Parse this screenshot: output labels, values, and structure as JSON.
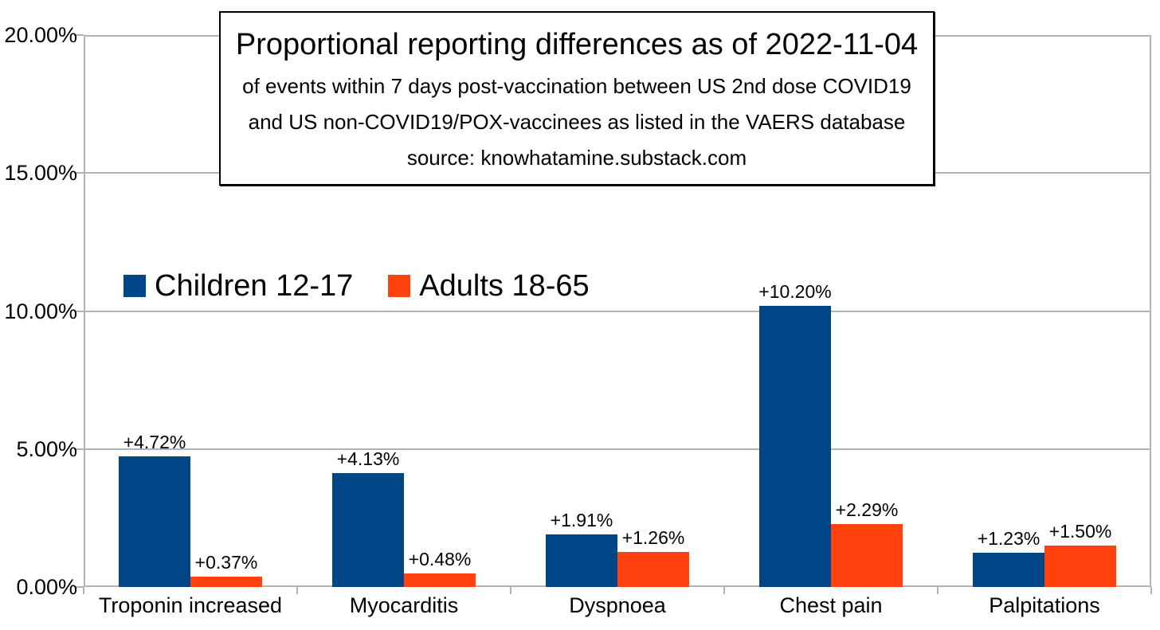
{
  "chart_data": {
    "type": "bar",
    "title": "Proportional reporting differences as of 2022-11-04",
    "subtitle_lines": [
      "of events within 7 days post-vaccination between US 2nd dose COVID19",
      "and US non-COVID19/POX-vaccinees as listed in the VAERS database",
      "source: knowhatamine.substack.com"
    ],
    "categories": [
      "Troponin increased",
      "Myocarditis",
      "Dyspnoea",
      "Chest pain",
      "Palpitations"
    ],
    "series": [
      {
        "name": "Children 12-17",
        "color": "#004586",
        "values": [
          4.72,
          4.13,
          1.91,
          10.2,
          1.23
        ],
        "labels": [
          "+4.72%",
          "+4.13%",
          "+1.91%",
          "+10.20%",
          "+1.23%"
        ]
      },
      {
        "name": "Adults 18-65",
        "color": "#ff420e",
        "values": [
          0.37,
          0.48,
          1.26,
          2.29,
          1.5
        ],
        "labels": [
          "+0.37%",
          "+0.48%",
          "+1.26%",
          "+2.29%",
          "+1.50%"
        ]
      }
    ],
    "ylim": [
      0,
      20
    ],
    "y_ticks": [
      {
        "value": 20,
        "label": "20.00%"
      },
      {
        "value": 15,
        "label": "15.00%"
      },
      {
        "value": 10,
        "label": "10.00%"
      },
      {
        "value": 5,
        "label": "5.00%"
      },
      {
        "value": 0,
        "label": "0.00%"
      }
    ],
    "grid": "horizontal",
    "legend_position": "inside-top-left",
    "colors": {
      "series1": "#004586",
      "series2": "#ff420e",
      "gridline": "#b3b3b3",
      "axis": "#b3b3b3",
      "text": "#000000",
      "background": "#ffffff"
    }
  }
}
